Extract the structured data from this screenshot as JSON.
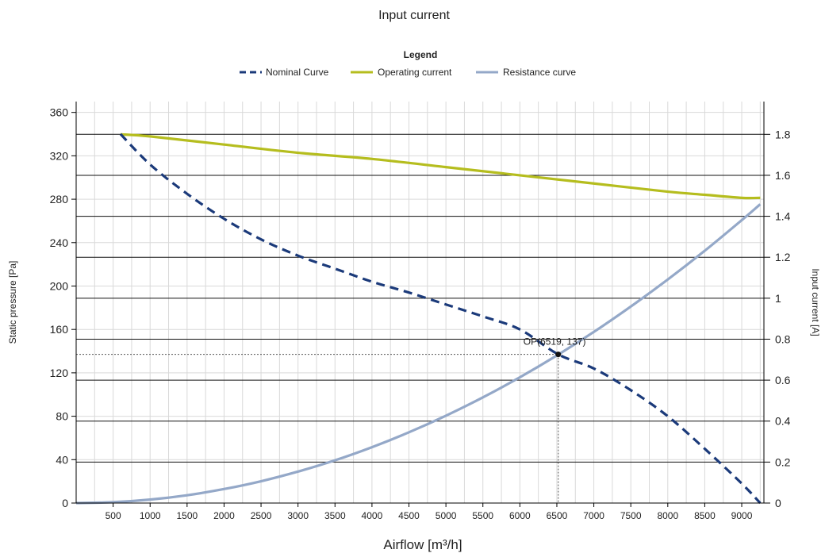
{
  "chart_data": {
    "type": "line",
    "title": "Input current",
    "legend": {
      "title": "Legend",
      "placement": "top-center"
    },
    "xlabel": "Airflow [m³/h]",
    "ylabel_left": "Static pressure [Pa]",
    "ylabel_right": "Input current [A]",
    "xlim": [
      0,
      9300
    ],
    "ylim_left": [
      0,
      370
    ],
    "ylim_right": [
      0,
      1.96
    ],
    "x_ticks": [
      "500",
      "1000",
      "1500",
      "2000",
      "2500",
      "3000",
      "3500",
      "4000",
      "4500",
      "5000",
      "5500",
      "6000",
      "6500",
      "7000",
      "7500",
      "8000",
      "8500",
      "9000"
    ],
    "x_tick_values": [
      500,
      1000,
      1500,
      2000,
      2500,
      3000,
      3500,
      4000,
      4500,
      5000,
      5500,
      6000,
      6500,
      7000,
      7500,
      8000,
      8500,
      9000
    ],
    "y_left_ticks": [
      "0",
      "40",
      "80",
      "120",
      "160",
      "200",
      "240",
      "280",
      "320",
      "360"
    ],
    "y_left_tick_values": [
      0,
      40,
      80,
      120,
      160,
      200,
      240,
      280,
      320,
      360
    ],
    "y_right_ticks": [
      "0",
      "0.2",
      "0.4",
      "0.6",
      "0.8",
      "1",
      "1.2",
      "1.4",
      "1.6",
      "1.8"
    ],
    "y_right_tick_values": [
      0,
      0.2,
      0.4,
      0.6,
      0.8,
      1.0,
      1.2,
      1.4,
      1.6,
      1.8
    ],
    "grid": true,
    "series": [
      {
        "name": "Nominal Curve",
        "axis": "left",
        "style": "dashed",
        "color": "#1b3a7a",
        "x": [
          600,
          1000,
          1500,
          2000,
          2500,
          3000,
          3500,
          4000,
          4500,
          5000,
          5500,
          6000,
          6519,
          7000,
          7500,
          8000,
          8500,
          9000,
          9250
        ],
        "y": [
          340,
          312,
          285,
          262,
          243,
          228,
          216,
          204,
          194,
          183,
          172,
          160,
          137,
          124,
          104,
          80,
          50,
          18,
          0
        ]
      },
      {
        "name": "Operating current",
        "axis": "right",
        "style": "solid",
        "color": "#b5bd1e",
        "x": [
          600,
          1000,
          2000,
          3000,
          4000,
          5000,
          6000,
          7000,
          8000,
          8500,
          9000,
          9250
        ],
        "y": [
          1.8,
          1.79,
          1.75,
          1.71,
          1.68,
          1.64,
          1.6,
          1.56,
          1.52,
          1.505,
          1.49,
          1.49
        ]
      },
      {
        "name": "Resistance curve",
        "axis": "left",
        "style": "solid",
        "color": "#94a8c8",
        "x": [
          0,
          500,
          1000,
          1500,
          2000,
          2500,
          3000,
          3500,
          4000,
          4500,
          5000,
          5500,
          6000,
          6500,
          7000,
          7500,
          8000,
          8500,
          9000,
          9250
        ],
        "y": [
          0,
          0.8,
          3.2,
          7.2,
          12.9,
          20.1,
          29,
          39.4,
          51.5,
          65.2,
          80.5,
          97.4,
          115.9,
          136,
          157.7,
          181.1,
          206,
          232.5,
          260.7,
          275.4
        ]
      }
    ],
    "operating_point": {
      "label": "OP(6519, 137)",
      "x": 6519,
      "y": 137
    }
  }
}
